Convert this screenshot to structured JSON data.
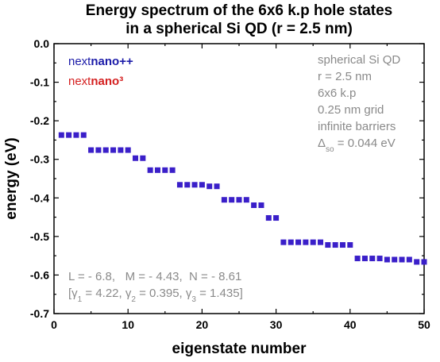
{
  "chart_data": {
    "type": "scatter",
    "title": [
      "Energy spectrum of the 6x6 k.p hole states",
      "in a spherical Si QD (r = 2.5 nm)"
    ],
    "xlabel": "eigenstate number",
    "ylabel": "energy (eV)",
    "xlim": [
      0,
      50
    ],
    "ylim": [
      -0.7,
      0.0
    ],
    "x_ticks": [
      "0",
      "10",
      "20",
      "30",
      "40",
      "50"
    ],
    "y_ticks": [
      "0.0",
      "-0.1",
      "-0.2",
      "-0.3",
      "-0.4",
      "-0.5",
      "-0.6",
      "-0.7"
    ],
    "grid": false,
    "marker_color": "#3a1fc9",
    "series": [
      {
        "x": [
          1,
          2,
          3,
          4,
          5,
          6,
          7,
          8,
          9,
          10,
          11,
          12,
          13,
          14,
          15,
          16,
          17,
          18,
          19,
          20,
          21,
          22,
          23,
          24,
          25,
          26,
          27,
          28,
          29,
          30,
          31,
          32,
          33,
          34,
          35,
          36,
          37,
          38,
          39,
          40,
          41,
          42,
          43,
          44,
          45,
          46,
          47,
          48,
          49,
          50
        ],
        "y": [
          -0.237,
          -0.237,
          -0.237,
          -0.237,
          -0.276,
          -0.276,
          -0.276,
          -0.276,
          -0.276,
          -0.276,
          -0.297,
          -0.297,
          -0.328,
          -0.328,
          -0.328,
          -0.328,
          -0.366,
          -0.366,
          -0.366,
          -0.366,
          -0.37,
          -0.37,
          -0.405,
          -0.405,
          -0.405,
          -0.405,
          -0.419,
          -0.419,
          -0.452,
          -0.452,
          -0.515,
          -0.515,
          -0.515,
          -0.515,
          -0.515,
          -0.515,
          -0.522,
          -0.522,
          -0.522,
          -0.522,
          -0.557,
          -0.557,
          -0.557,
          -0.557,
          -0.56,
          -0.56,
          -0.56,
          -0.56,
          -0.566,
          -0.566
        ]
      }
    ],
    "legend": {
      "placement": "top-left",
      "line1_prefix": "next",
      "line1_suffix": "nano++",
      "line1_color": "#1a1aa8",
      "line2_prefix": "next",
      "line2_suffix": "nano³",
      "line2_color": "#d41f1f"
    },
    "info_box": {
      "placement": "top-right",
      "lines": [
        "spherical Si QD",
        "r = 2.5 nm",
        "6x6 k.p",
        "0.25 nm grid",
        "infinite barriers"
      ],
      "delta_symbol": "Δ",
      "delta_subscript": "so",
      "delta_value": " = 0.044 eV"
    },
    "annotation": {
      "line1": "L = - 6.8,   M = - 4.43,  N = - 8.61",
      "open_bracket": "[",
      "gamma": "γ",
      "g1_sub": "1",
      "g1_val": " = 4.22, ",
      "g2_sub": "2",
      "g2_val": " = 0.395, ",
      "g3_sub": "3",
      "g3_val": " = 1.435]"
    }
  }
}
